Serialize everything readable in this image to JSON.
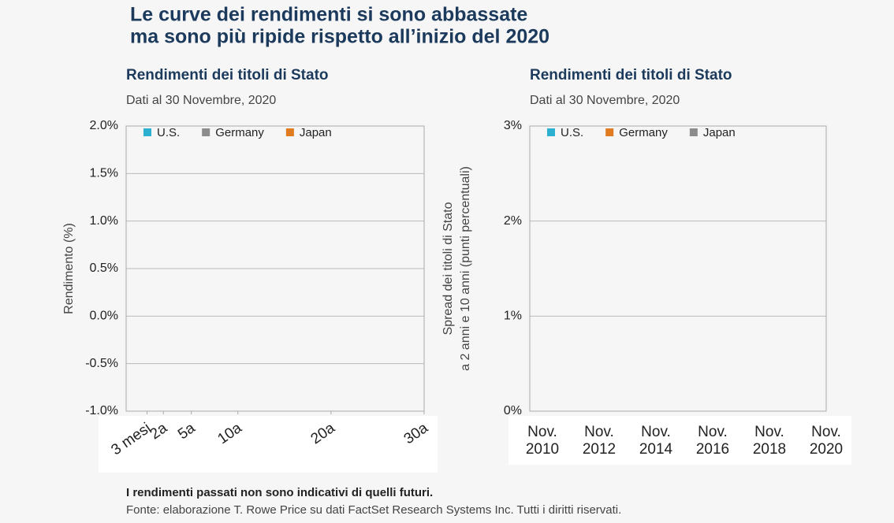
{
  "title": [
    "Le curve dei rendimenti si sono abbassate",
    "ma sono più ripide rispetto all’inizio del 2020"
  ],
  "chart_data": [
    {
      "type": "line",
      "title": "Rendimenti dei titoli di Stato",
      "subtitle": "Dati al 30 Novembre, 2020",
      "ylabel": [
        "Rendimento (%)"
      ],
      "series": [
        {
          "name": "U.S.",
          "color": "#2bb0cf"
        },
        {
          "name": "Germany",
          "color": "#8c8c8c"
        },
        {
          "name": "Japan",
          "color": "#e07b20"
        }
      ],
      "xlim": [
        -2,
        30
      ],
      "xticks": [
        {
          "value": 0.25,
          "label": "3 mesi"
        },
        {
          "value": 2,
          "label": "2a"
        },
        {
          "value": 5,
          "label": "5a"
        },
        {
          "value": 10,
          "label": "10a"
        },
        {
          "value": 20,
          "label": "20a"
        },
        {
          "value": 30,
          "label": "30a"
        }
      ],
      "ylim": [
        -1,
        2
      ],
      "yticks": [
        {
          "value": -1,
          "label": "-1.0%"
        },
        {
          "value": -0.5,
          "label": "-0.5%"
        },
        {
          "value": 0,
          "label": "0.0%"
        },
        {
          "value": 0.5,
          "label": "0.5%"
        },
        {
          "value": 1,
          "label": "1.0%"
        },
        {
          "value": 1.5,
          "label": "1.5%"
        },
        {
          "value": 2,
          "label": "2.0%"
        }
      ],
      "grid": true
    },
    {
      "type": "line",
      "title": "Rendimenti dei titoli di Stato",
      "subtitle": "Dati al 30 Novembre, 2020",
      "ylabel": [
        "Spread dei titoli di Stato",
        "a 2 anni e 10 anni (punti percentuali)"
      ],
      "series": [
        {
          "name": "U.S.",
          "color": "#2bb0cf"
        },
        {
          "name": "Germany",
          "color": "#e07b20"
        },
        {
          "name": "Japan",
          "color": "#8c8c8c"
        }
      ],
      "categories": [
        "Nov. 2010",
        "Nov. 2012",
        "Nov. 2014",
        "Nov. 2016",
        "Nov. 2018",
        "Nov. 2020"
      ],
      "ylim": [
        0,
        3
      ],
      "yticks": [
        {
          "value": 0,
          "label": "0%"
        },
        {
          "value": 1,
          "label": "1%"
        },
        {
          "value": 2,
          "label": "2%"
        },
        {
          "value": 3,
          "label": "3%"
        }
      ],
      "grid": true
    }
  ],
  "footer": {
    "note": "I  rendimenti passati non sono indicativi di quelli futuri.",
    "source": "Fonte: elaborazione T. Rowe Price su dati FactSet Research Systems Inc. Tutti i diritti riservati."
  }
}
